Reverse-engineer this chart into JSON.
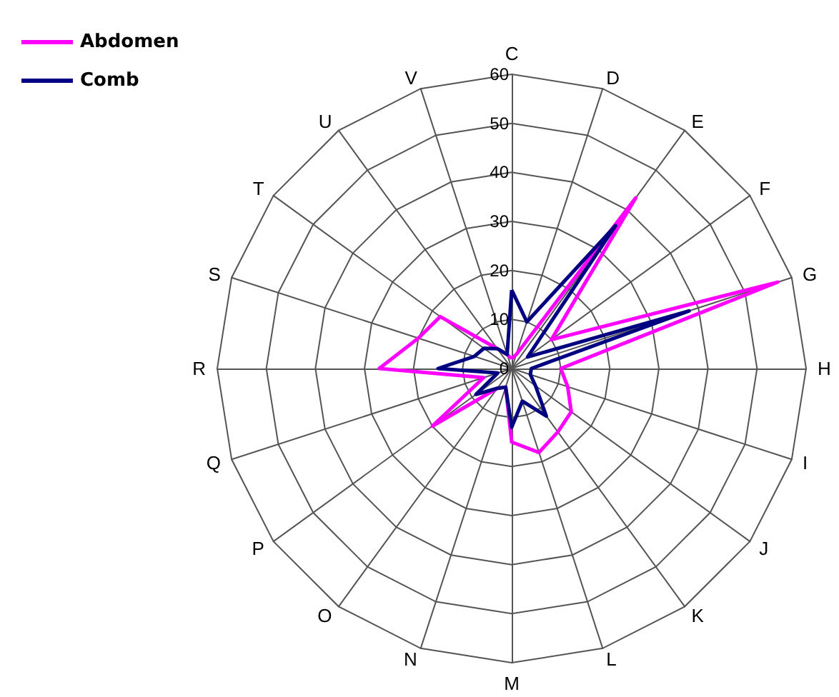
{
  "chart_data": {
    "type": "radar",
    "categories": [
      "C",
      "D",
      "E",
      "F",
      "G",
      "H",
      "I",
      "J",
      "K",
      "L",
      "M",
      "N",
      "O",
      "P",
      "Q",
      "R",
      "S",
      "T",
      "U",
      "V"
    ],
    "ylim": [
      0,
      60
    ],
    "yticks": [
      0,
      10,
      20,
      30,
      40,
      50,
      60
    ],
    "legend": "top left",
    "series": [
      {
        "name": "Abdomen",
        "color": "#ff00ff",
        "values": [
          2,
          3,
          43,
          10,
          57,
          10,
          12,
          15,
          16,
          18,
          15,
          4,
          5,
          20,
          6,
          27,
          20,
          18,
          5,
          3
        ]
      },
      {
        "name": "Comb",
        "color": "#000080",
        "values": [
          16,
          10,
          36,
          4,
          38,
          4,
          4,
          6,
          12,
          7,
          12,
          4,
          5,
          9,
          3,
          15,
          8,
          7,
          5,
          3
        ]
      }
    ]
  }
}
